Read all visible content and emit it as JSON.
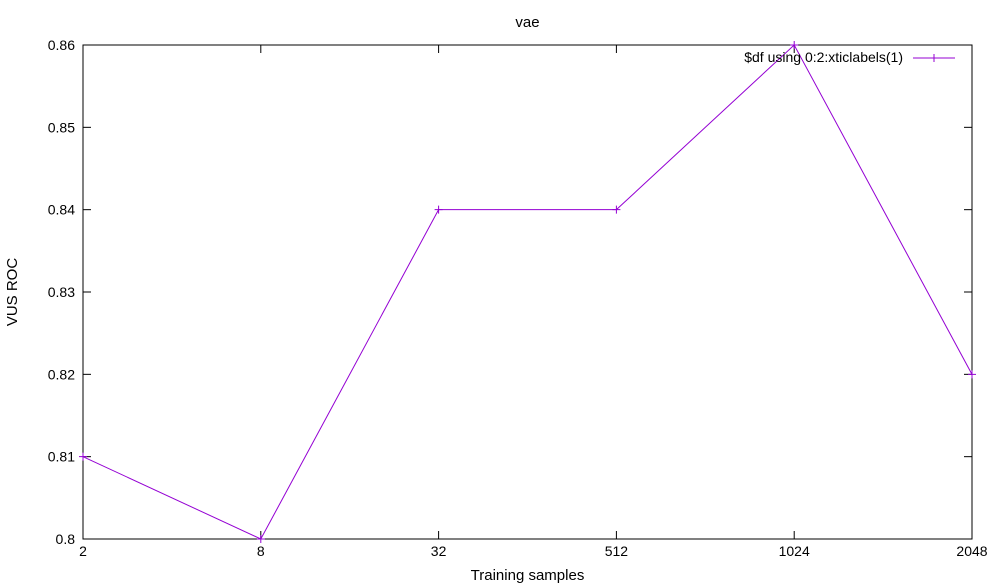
{
  "chart_data": {
    "type": "line",
    "title": "vae",
    "xlabel": "Training samples",
    "ylabel": "VUS ROC",
    "categories": [
      "2",
      "8",
      "32",
      "512",
      "1024",
      "2048"
    ],
    "series": [
      {
        "name": "$df using 0:2:xticlabels(1)",
        "values": [
          0.81,
          0.8,
          0.84,
          0.84,
          0.86,
          0.82
        ],
        "color": "#9400d3"
      }
    ],
    "ylim": [
      0.8,
      0.86
    ],
    "yticks": [
      "0.8",
      "0.81",
      "0.82",
      "0.83",
      "0.84",
      "0.85",
      "0.86"
    ],
    "grid": false,
    "legend_position": "top-right"
  }
}
